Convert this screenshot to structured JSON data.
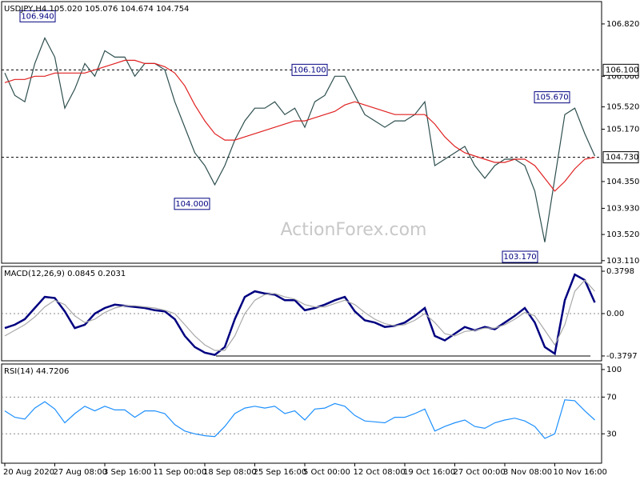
{
  "chart_data": [
    {
      "type": "line",
      "title": "USDJPY,H4  105.020 105.076 104.674 104.754",
      "watermark": "ActionForex.com",
      "ylim": [
        103.07,
        107.17
      ],
      "yticks": [
        {
          "value": 106.82,
          "label": "106.820"
        },
        {
          "value": 106.0,
          "label": "106.000"
        },
        {
          "value": 105.52,
          "label": "105.520"
        },
        {
          "value": 105.17,
          "label": "105.170"
        },
        {
          "value": 104.35,
          "label": "104.350"
        },
        {
          "value": 103.93,
          "label": "103.930"
        },
        {
          "value": 103.52,
          "label": "103.520"
        },
        {
          "value": 103.11,
          "label": "103.110"
        }
      ],
      "reference_lines": [
        {
          "value": 106.1,
          "label": "106.100"
        },
        {
          "value": 104.73,
          "label": "104.730"
        }
      ],
      "annotations": [
        {
          "value": 106.94,
          "label": "106.940"
        },
        {
          "value": 106.1,
          "label": "106.100"
        },
        {
          "value": 104.0,
          "label": "104.000"
        },
        {
          "value": 105.67,
          "label": "105.670"
        },
        {
          "value": 103.17,
          "label": "103.170"
        }
      ],
      "series": [
        {
          "color": "#2f4f4f",
          "values": [
            106.05,
            105.7,
            105.6,
            106.2,
            106.6,
            106.3,
            105.5,
            105.8,
            106.2,
            106.0,
            106.4,
            106.3,
            106.3,
            106.0,
            106.2,
            106.2,
            106.1,
            105.6,
            105.2,
            104.8,
            104.6,
            104.3,
            104.6,
            105.0,
            105.3,
            105.5,
            105.5,
            105.6,
            105.4,
            105.5,
            105.2,
            105.6,
            105.7,
            106.0,
            106.0,
            105.7,
            105.4,
            105.3,
            105.2,
            105.3,
            105.3,
            105.4,
            105.6,
            104.6,
            104.7,
            104.8,
            104.9,
            104.6,
            104.4,
            104.6,
            104.7,
            104.7,
            104.6,
            104.2,
            103.4,
            104.4,
            105.4,
            105.5,
            105.1,
            104.75
          ]
        },
        {
          "color": "#e02020",
          "values": [
            105.9,
            105.95,
            105.95,
            106.0,
            106.0,
            106.05,
            106.05,
            106.05,
            106.05,
            106.1,
            106.15,
            106.2,
            106.25,
            106.25,
            106.2,
            106.2,
            106.15,
            106.05,
            105.85,
            105.55,
            105.3,
            105.1,
            105.0,
            105.0,
            105.05,
            105.1,
            105.15,
            105.2,
            105.25,
            105.3,
            105.3,
            105.35,
            105.4,
            105.45,
            105.55,
            105.6,
            105.55,
            105.5,
            105.45,
            105.4,
            105.4,
            105.4,
            105.4,
            105.25,
            105.05,
            104.9,
            104.8,
            104.75,
            104.7,
            104.65,
            104.65,
            104.7,
            104.7,
            104.6,
            104.4,
            104.2,
            104.35,
            104.55,
            104.7,
            104.73
          ]
        }
      ]
    },
    {
      "type": "line",
      "title": "MACD(12,26,9) 0.0845 0.2031",
      "ylim": [
        -0.423,
        0.423
      ],
      "yticks": [
        0.3798,
        {
          "value": 0,
          "label": "0.00"
        },
        -0.3797
      ],
      "levels": [
        0
      ],
      "series": [
        {
          "color": "#000080",
          "values": [
            -0.13,
            -0.1,
            -0.05,
            0.05,
            0.15,
            0.14,
            0.02,
            -0.13,
            -0.1,
            0.0,
            0.05,
            0.08,
            0.07,
            0.06,
            0.05,
            0.03,
            0.02,
            -0.05,
            -0.2,
            -0.3,
            -0.35,
            -0.37,
            -0.3,
            -0.05,
            0.15,
            0.2,
            0.18,
            0.17,
            0.12,
            0.12,
            0.03,
            0.05,
            0.08,
            0.12,
            0.15,
            0.02,
            -0.06,
            -0.08,
            -0.12,
            -0.11,
            -0.08,
            -0.02,
            0.05,
            -0.2,
            -0.24,
            -0.18,
            -0.12,
            -0.15,
            -0.12,
            -0.14,
            -0.08,
            -0.02,
            0.05,
            -0.08,
            -0.3,
            -0.36,
            0.12,
            0.35,
            0.3,
            0.1
          ]
        },
        {
          "color": "#a9a9a9",
          "values": [
            -0.2,
            -0.15,
            -0.1,
            -0.03,
            0.06,
            0.12,
            0.08,
            -0.02,
            -0.08,
            -0.05,
            0.01,
            0.05,
            0.07,
            0.07,
            0.06,
            0.05,
            0.03,
            0.0,
            -0.1,
            -0.2,
            -0.28,
            -0.33,
            -0.33,
            -0.2,
            0.0,
            0.12,
            0.17,
            0.18,
            0.15,
            0.13,
            0.08,
            0.06,
            0.06,
            0.09,
            0.12,
            0.08,
            0.01,
            -0.05,
            -0.09,
            -0.11,
            -0.1,
            -0.06,
            0.0,
            -0.08,
            -0.18,
            -0.2,
            -0.16,
            -0.15,
            -0.13,
            -0.13,
            -0.1,
            -0.05,
            0.01,
            -0.02,
            -0.15,
            -0.28,
            -0.1,
            0.2,
            0.3,
            0.2
          ]
        }
      ]
    },
    {
      "type": "line",
      "title": "RSI(14) 44.7206",
      "ylim": [
        -2,
        106
      ],
      "yticks": [
        100,
        70,
        30
      ],
      "levels": [
        70,
        30
      ],
      "categories": [
        "20 Aug 2020",
        null,
        null,
        null,
        null,
        "27 Aug 08:00",
        null,
        null,
        null,
        null,
        "3 Sep 16:00",
        null,
        null,
        null,
        null,
        "11 Sep 00:00",
        null,
        null,
        null,
        null,
        "18 Sep 08:00",
        null,
        null,
        null,
        null,
        "25 Sep 16:00",
        null,
        null,
        null,
        null,
        "5 Oct 00:00",
        null,
        null,
        null,
        null,
        "12 Oct 08:00",
        null,
        null,
        null,
        null,
        "19 Oct 16:00",
        null,
        null,
        null,
        null,
        "27 Oct 00:00",
        null,
        null,
        null,
        null,
        "3 Nov 08:00",
        null,
        null,
        null,
        null,
        "10 Nov 16:00",
        null,
        null,
        null,
        null
      ],
      "series": [
        {
          "color": "#1e90ff",
          "values": [
            55,
            48,
            46,
            58,
            65,
            57,
            42,
            52,
            60,
            55,
            60,
            56,
            56,
            48,
            55,
            55,
            52,
            40,
            33,
            30,
            28,
            27,
            38,
            52,
            58,
            60,
            58,
            60,
            52,
            55,
            45,
            57,
            58,
            63,
            60,
            50,
            44,
            43,
            42,
            48,
            48,
            52,
            57,
            33,
            38,
            42,
            45,
            38,
            36,
            42,
            45,
            47,
            44,
            38,
            25,
            30,
            67,
            66,
            55,
            45
          ]
        }
      ]
    }
  ]
}
